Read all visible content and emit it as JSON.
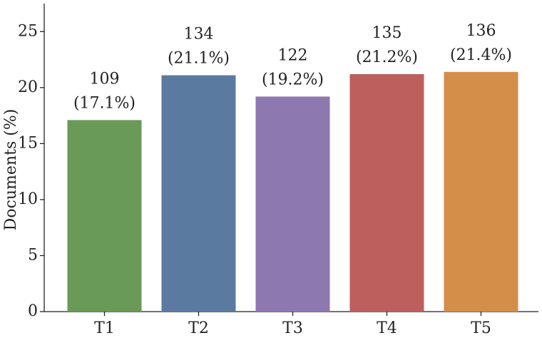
{
  "chart_data": {
    "type": "bar",
    "y_label": "Documents (%)",
    "categories": [
      "T1",
      "T2",
      "T3",
      "T4",
      "T5"
    ],
    "values": [
      17.1,
      21.1,
      19.2,
      21.2,
      21.4
    ],
    "value_labels": [
      "(17.1%)",
      "(21.1%)",
      "(19.2%)",
      "(21.2%)",
      "(21.4%)"
    ],
    "counts": [
      109,
      134,
      122,
      135,
      136
    ],
    "colors": [
      "#6a9a58",
      "#5b7aa0",
      "#8e78b0",
      "#bd5f5d",
      "#d48e4a"
    ],
    "ylim": [
      0,
      27.5
    ],
    "yticks": [
      0,
      5,
      10,
      15,
      20,
      25
    ],
    "grid": false
  }
}
